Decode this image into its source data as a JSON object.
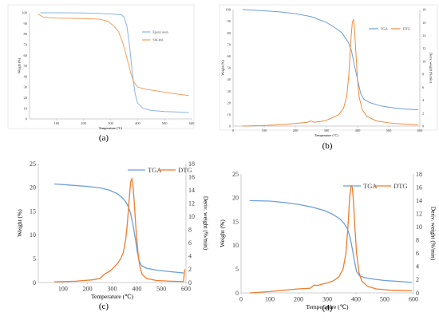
{
  "chart_data": [
    {
      "id": "a",
      "type": "line",
      "panel_label": "(a)",
      "xlabel": "Temperature (°C)",
      "ylabel": "Weight (%)",
      "xlim": [
        0,
        600
      ],
      "ylim": [
        0,
        100
      ],
      "x_ticks": [
        100,
        200,
        300,
        400,
        500,
        600
      ],
      "x_tick_labels": [
        "100",
        "200",
        "300",
        "400",
        "500",
        "600"
      ],
      "y_ticks": [
        0,
        10,
        20,
        30,
        40,
        50,
        60,
        70,
        80,
        90,
        100
      ],
      "y_tick_labels": [
        "0",
        "10",
        "20",
        "30",
        "40",
        "50",
        "60",
        "70",
        "80",
        "90",
        "100"
      ],
      "legend_position": "right",
      "series": [
        {
          "name": "Epoxy resin",
          "axis": "left",
          "color": "#8ab4e8",
          "points": [
            [
              40,
              100
            ],
            [
              100,
              100
            ],
            [
              200,
              99.8
            ],
            [
              300,
              99
            ],
            [
              340,
              98
            ],
            [
              350,
              96
            ],
            [
              360,
              88
            ],
            [
              370,
              70
            ],
            [
              380,
              45
            ],
            [
              390,
              25
            ],
            [
              400,
              15
            ],
            [
              420,
              10
            ],
            [
              450,
              8
            ],
            [
              500,
              7
            ],
            [
              550,
              6.5
            ],
            [
              590,
              6
            ]
          ]
        },
        {
          "name": "SW-WA",
          "axis": "left",
          "color": "#f4a15d",
          "points": [
            [
              30,
              99
            ],
            [
              50,
              96
            ],
            [
              70,
              95.5
            ],
            [
              100,
              95
            ],
            [
              200,
              94.5
            ],
            [
              260,
              94
            ],
            [
              290,
              92
            ],
            [
              310,
              88
            ],
            [
              330,
              82
            ],
            [
              345,
              72
            ],
            [
              355,
              63
            ],
            [
              365,
              53
            ],
            [
              375,
              43
            ],
            [
              385,
              35
            ],
            [
              400,
              30
            ],
            [
              430,
              28
            ],
            [
              480,
              26
            ],
            [
              530,
              24
            ],
            [
              590,
              22
            ]
          ]
        }
      ]
    },
    {
      "id": "b",
      "type": "line",
      "panel_label": "(b)",
      "xlabel": "Temperature (°C)",
      "ylabel": "Weight (%)",
      "y2label": "Deriv. weight (%/min)",
      "xlim": [
        0,
        600
      ],
      "ylim": [
        0,
        100
      ],
      "y2lim": [
        0,
        18
      ],
      "x_ticks": [
        0,
        100,
        200,
        300,
        400,
        500,
        600
      ],
      "x_tick_labels": [
        "0",
        "100",
        "200",
        "300",
        "400",
        "500",
        "600"
      ],
      "y_ticks": [
        0,
        10,
        20,
        30,
        40,
        50,
        60,
        70,
        80,
        90,
        100
      ],
      "y_tick_labels": [
        "0",
        "10",
        "20",
        "30",
        "40",
        "50",
        "60",
        "70",
        "80",
        "90",
        "100"
      ],
      "y2_ticks": [
        0,
        2,
        4,
        6,
        8,
        10,
        12,
        14,
        16,
        18
      ],
      "y2_tick_labels": [
        "0",
        "2",
        "4",
        "6",
        "8",
        "10",
        "12",
        "14",
        "16",
        "18"
      ],
      "legend_position": "top-right",
      "series": [
        {
          "name": "TGA",
          "axis": "left",
          "color": "#6c9fdc",
          "points": [
            [
              30,
              100
            ],
            [
              100,
              99
            ],
            [
              150,
              98
            ],
            [
              200,
              96.5
            ],
            [
              250,
              94
            ],
            [
              300,
              89
            ],
            [
              330,
              84
            ],
            [
              350,
              80
            ],
            [
              370,
              72
            ],
            [
              380,
              65
            ],
            [
              390,
              52
            ],
            [
              400,
              40
            ],
            [
              410,
              28
            ],
            [
              420,
              23
            ],
            [
              440,
              20
            ],
            [
              480,
              17
            ],
            [
              520,
              15.5
            ],
            [
              560,
              14.5
            ],
            [
              595,
              14
            ]
          ]
        },
        {
          "name": "DTG",
          "axis": "right",
          "color": "#f08a3c",
          "points": [
            [
              30,
              0
            ],
            [
              100,
              0.1
            ],
            [
              150,
              0.2
            ],
            [
              200,
              0.4
            ],
            [
              240,
              0.6
            ],
            [
              250,
              0.8
            ],
            [
              260,
              0.6
            ],
            [
              280,
              0.7
            ],
            [
              300,
              0.9
            ],
            [
              320,
              1.3
            ],
            [
              340,
              1.8
            ],
            [
              355,
              2.8
            ],
            [
              365,
              4.5
            ],
            [
              372,
              8
            ],
            [
              378,
              13
            ],
            [
              383,
              16
            ],
            [
              387,
              16.5
            ],
            [
              390,
              15
            ],
            [
              395,
              11
            ],
            [
              400,
              7
            ],
            [
              405,
              4.5
            ],
            [
              415,
              2.5
            ],
            [
              430,
              1.5
            ],
            [
              460,
              0.8
            ],
            [
              500,
              0.5
            ],
            [
              550,
              0.3
            ],
            [
              595,
              0.2
            ]
          ]
        }
      ]
    },
    {
      "id": "c",
      "type": "line",
      "panel_label": "(c)",
      "xlabel": "Temperature (℃)",
      "ylabel": "Weight (%)",
      "y2label": "Deriv. weight (%/min)",
      "xlim": [
        0,
        600
      ],
      "ylim": [
        0,
        25
      ],
      "y2lim": [
        0,
        18
      ],
      "x_ticks": [
        100,
        200,
        300,
        400,
        500,
        600
      ],
      "x_tick_labels": [
        "100",
        "200",
        "300",
        "400",
        "500",
        "600"
      ],
      "y_ticks": [
        0,
        5,
        10,
        15,
        20,
        25
      ],
      "y_tick_labels": [
        "0",
        "5",
        "10",
        "15",
        "20",
        "25"
      ],
      "y2_ticks": [
        0,
        2,
        4,
        6,
        8,
        10,
        12,
        14,
        16,
        18
      ],
      "y2_tick_labels": [
        "0",
        "2",
        "4",
        "6",
        "8",
        "10",
        "12",
        "14",
        "16",
        "18"
      ],
      "legend_position": "top",
      "series": [
        {
          "name": "TGA",
          "axis": "left",
          "color": "#6c9fdc",
          "points": [
            [
              65,
              20.7
            ],
            [
              100,
              20.6
            ],
            [
              150,
              20.4
            ],
            [
              200,
              20.2
            ],
            [
              250,
              19.9
            ],
            [
              290,
              19.4
            ],
            [
              320,
              18.7
            ],
            [
              340,
              17.9
            ],
            [
              355,
              17
            ],
            [
              365,
              16
            ],
            [
              375,
              14.5
            ],
            [
              385,
              12
            ],
            [
              395,
              9
            ],
            [
              402,
              6.5
            ],
            [
              410,
              4.5
            ],
            [
              420,
              3.5
            ],
            [
              440,
              3
            ],
            [
              480,
              2.6
            ],
            [
              530,
              2.3
            ],
            [
              590,
              2
            ]
          ]
        },
        {
          "name": "DTG",
          "axis": "right",
          "color": "#ee7d2f",
          "points": [
            [
              65,
              0.1
            ],
            [
              150,
              0.2
            ],
            [
              220,
              0.4
            ],
            [
              250,
              0.6
            ],
            [
              270,
              1.3
            ],
            [
              290,
              1.7
            ],
            [
              305,
              2.2
            ],
            [
              320,
              2.8
            ],
            [
              335,
              3.6
            ],
            [
              345,
              4.5
            ],
            [
              355,
              6.5
            ],
            [
              362,
              9
            ],
            [
              368,
              12
            ],
            [
              375,
              15.2
            ],
            [
              380,
              15.7
            ],
            [
              384,
              15
            ],
            [
              390,
              12
            ],
            [
              397,
              8
            ],
            [
              405,
              4.5
            ],
            [
              412,
              2.5
            ],
            [
              422,
              1.2
            ],
            [
              440,
              0.6
            ],
            [
              480,
              0.3
            ],
            [
              540,
              0.2
            ],
            [
              590,
              0.15
            ],
            [
              595,
              2
            ]
          ]
        }
      ]
    },
    {
      "id": "d",
      "type": "line",
      "panel_label": "(d)",
      "xlabel": "Temperature (℃)",
      "ylabel": "Weight (%)",
      "y2label": "Deriv. weight (%/min)",
      "xlim": [
        0,
        600
      ],
      "ylim": [
        0,
        25
      ],
      "y2lim": [
        0,
        18
      ],
      "x_ticks": [
        0,
        100,
        200,
        300,
        400,
        500,
        600
      ],
      "x_tick_labels": [
        "0",
        "100",
        "200",
        "300",
        "400",
        "500",
        "600"
      ],
      "y_ticks": [
        0,
        5,
        10,
        15,
        20,
        25
      ],
      "y_tick_labels": [
        "0",
        "5",
        "10",
        "15",
        "20",
        "25"
      ],
      "y2_ticks": [
        0,
        2,
        4,
        6,
        8,
        10,
        12,
        14,
        16,
        18
      ],
      "y2_tick_labels": [
        "0",
        "2",
        "4",
        "6",
        "8",
        "10",
        "12",
        "14",
        "16",
        "18"
      ],
      "legend_position": "top",
      "series": [
        {
          "name": "TGA",
          "axis": "left",
          "color": "#6c9fdc",
          "points": [
            [
              30,
              19.4
            ],
            [
              100,
              19.3
            ],
            [
              150,
              19
            ],
            [
              200,
              18.6
            ],
            [
              250,
              18
            ],
            [
              290,
              17.3
            ],
            [
              320,
              16.5
            ],
            [
              345,
              15.5
            ],
            [
              360,
              14.5
            ],
            [
              370,
              13.5
            ],
            [
              380,
              11.5
            ],
            [
              388,
              9
            ],
            [
              395,
              6.5
            ],
            [
              402,
              4.5
            ],
            [
              412,
              3.6
            ],
            [
              430,
              3.2
            ],
            [
              460,
              2.9
            ],
            [
              500,
              2.6
            ],
            [
              550,
              2.4
            ],
            [
              595,
              2.2
            ]
          ]
        },
        {
          "name": "DTG",
          "axis": "right",
          "color": "#ee7d2f",
          "points": [
            [
              30,
              0
            ],
            [
              100,
              0.2
            ],
            [
              150,
              0.4
            ],
            [
              200,
              0.6
            ],
            [
              240,
              0.7
            ],
            [
              255,
              1.2
            ],
            [
              265,
              1.1
            ],
            [
              280,
              1.3
            ],
            [
              300,
              1.5
            ],
            [
              320,
              1.8
            ],
            [
              340,
              2.4
            ],
            [
              355,
              3.6
            ],
            [
              365,
              6
            ],
            [
              372,
              10
            ],
            [
              378,
              14.5
            ],
            [
              383,
              16.2
            ],
            [
              387,
              16
            ],
            [
              391,
              14
            ],
            [
              396,
              10
            ],
            [
              402,
              6
            ],
            [
              410,
              3.2
            ],
            [
              420,
              1.8
            ],
            [
              440,
              1
            ],
            [
              470,
              0.6
            ],
            [
              520,
              0.4
            ],
            [
              595,
              0.3
            ]
          ]
        }
      ]
    }
  ]
}
